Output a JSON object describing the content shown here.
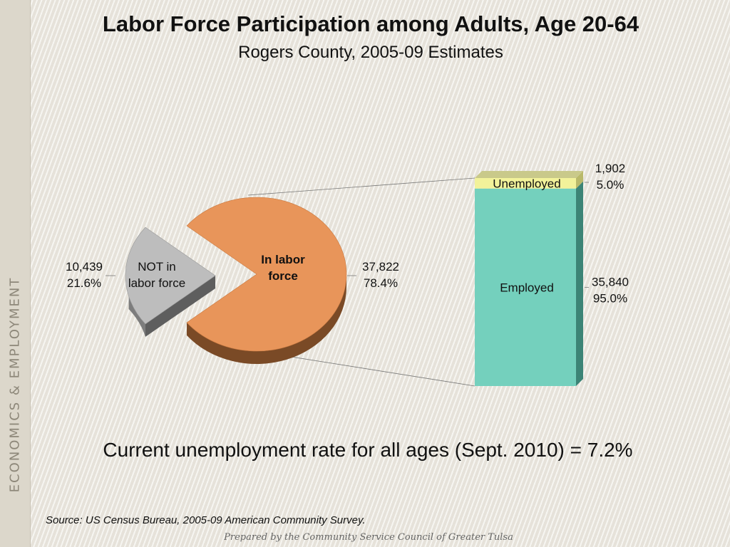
{
  "slide": {
    "side_title": "ECONOMICS & EMPLOYMENT",
    "title": "Labor Force Participation among Adults, Age 20-64",
    "subtitle": "Rogers County, 2005-09 Estimates",
    "footnote": "Current unemployment rate for all ages (Sept. 2010) = 7.2%",
    "source": "Source:  US Census Bureau, 2005-09 American Community Survey.",
    "prepared_by": "Prepared by the Community Service Council of Greater Tulsa"
  },
  "chart_data": [
    {
      "type": "pie",
      "slices": [
        {
          "label": "In labor force",
          "value": 37822,
          "value_label": "37,822",
          "percent_label": "78.4%",
          "color": "#e8955a",
          "side_color": "#7a4a26"
        },
        {
          "label": "NOT in labor force",
          "value": 10439,
          "value_label": "10,439",
          "percent_label": "21.6%",
          "color": "#bdbdbd",
          "side_color": "#5e5e5e"
        }
      ]
    },
    {
      "type": "bar",
      "stacked": true,
      "segments": [
        {
          "label": "Employed",
          "value": 35840,
          "value_label": "35,840",
          "percent_label": "95.0%",
          "color": "#74d0bd",
          "side_color": "#3c8476"
        },
        {
          "label": "Unemployed",
          "value": 1902,
          "value_label": "1,902",
          "percent_label": "5.0%",
          "color": "#f2f29a",
          "side_color": "#b9b96a"
        }
      ]
    }
  ]
}
